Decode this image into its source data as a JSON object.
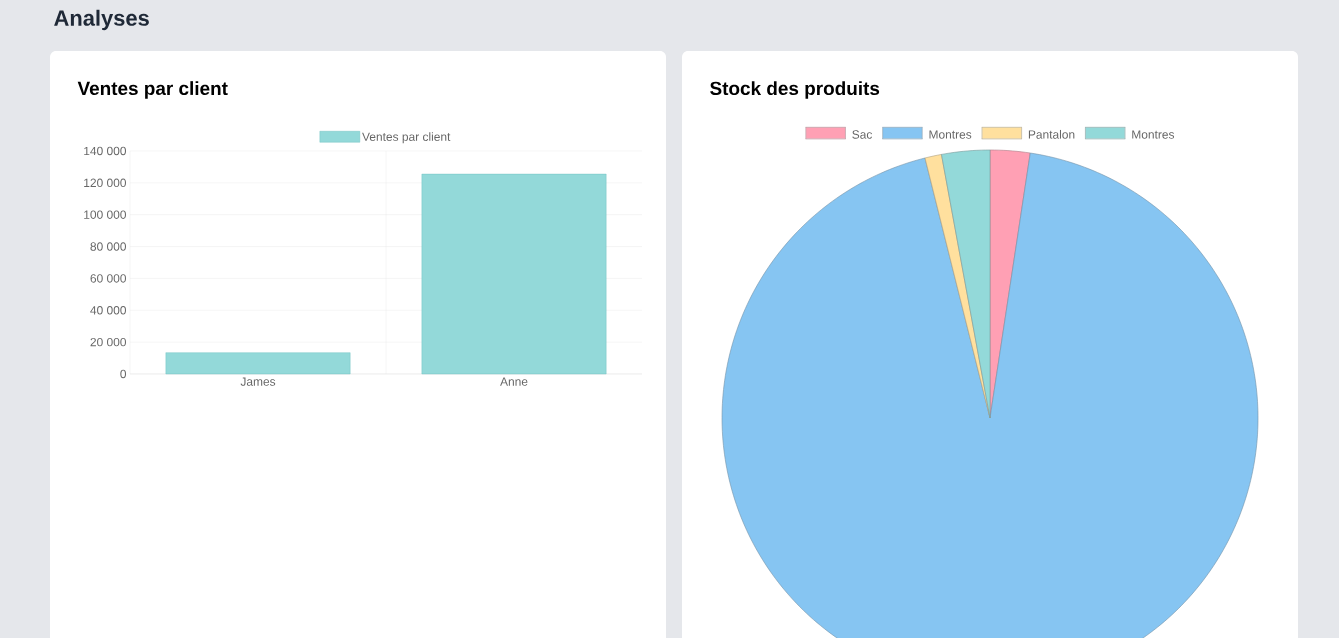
{
  "chart_data": [
    {
      "type": "bar",
      "title": "Ventes par client",
      "annotations": [
        "Analyses"
      ],
      "categories": [
        "James",
        "Anne"
      ],
      "series": [
        {
          "name": "Ventes par client",
          "color": "#93d9d9",
          "values": [
            13400,
            125500
          ]
        }
      ],
      "ylim": [
        0,
        140000
      ],
      "yticks": [
        0,
        {
          "value": 20000,
          "label": "20 000"
        },
        {
          "value": 40000,
          "label": "40 000"
        },
        {
          "value": 60000,
          "label": "60 000"
        },
        {
          "value": 80000,
          "label": "80 000"
        },
        {
          "value": 100000,
          "label": "100 000"
        },
        {
          "value": 120000,
          "label": "120 000"
        },
        {
          "value": 140000,
          "label": "140 000"
        }
      ],
      "grid": true,
      "legend": "top"
    },
    {
      "type": "pie",
      "title": "Stock des produits",
      "categories": [
        "Sac",
        "Montres",
        "Pantalon",
        "Montres"
      ],
      "values": [
        2.4,
        93.7,
        1.0,
        2.9
      ],
      "colors": [
        "#ffa0b4",
        "#86c5f2",
        "#ffe09e",
        "#93d9d9"
      ],
      "legend": "top"
    }
  ]
}
